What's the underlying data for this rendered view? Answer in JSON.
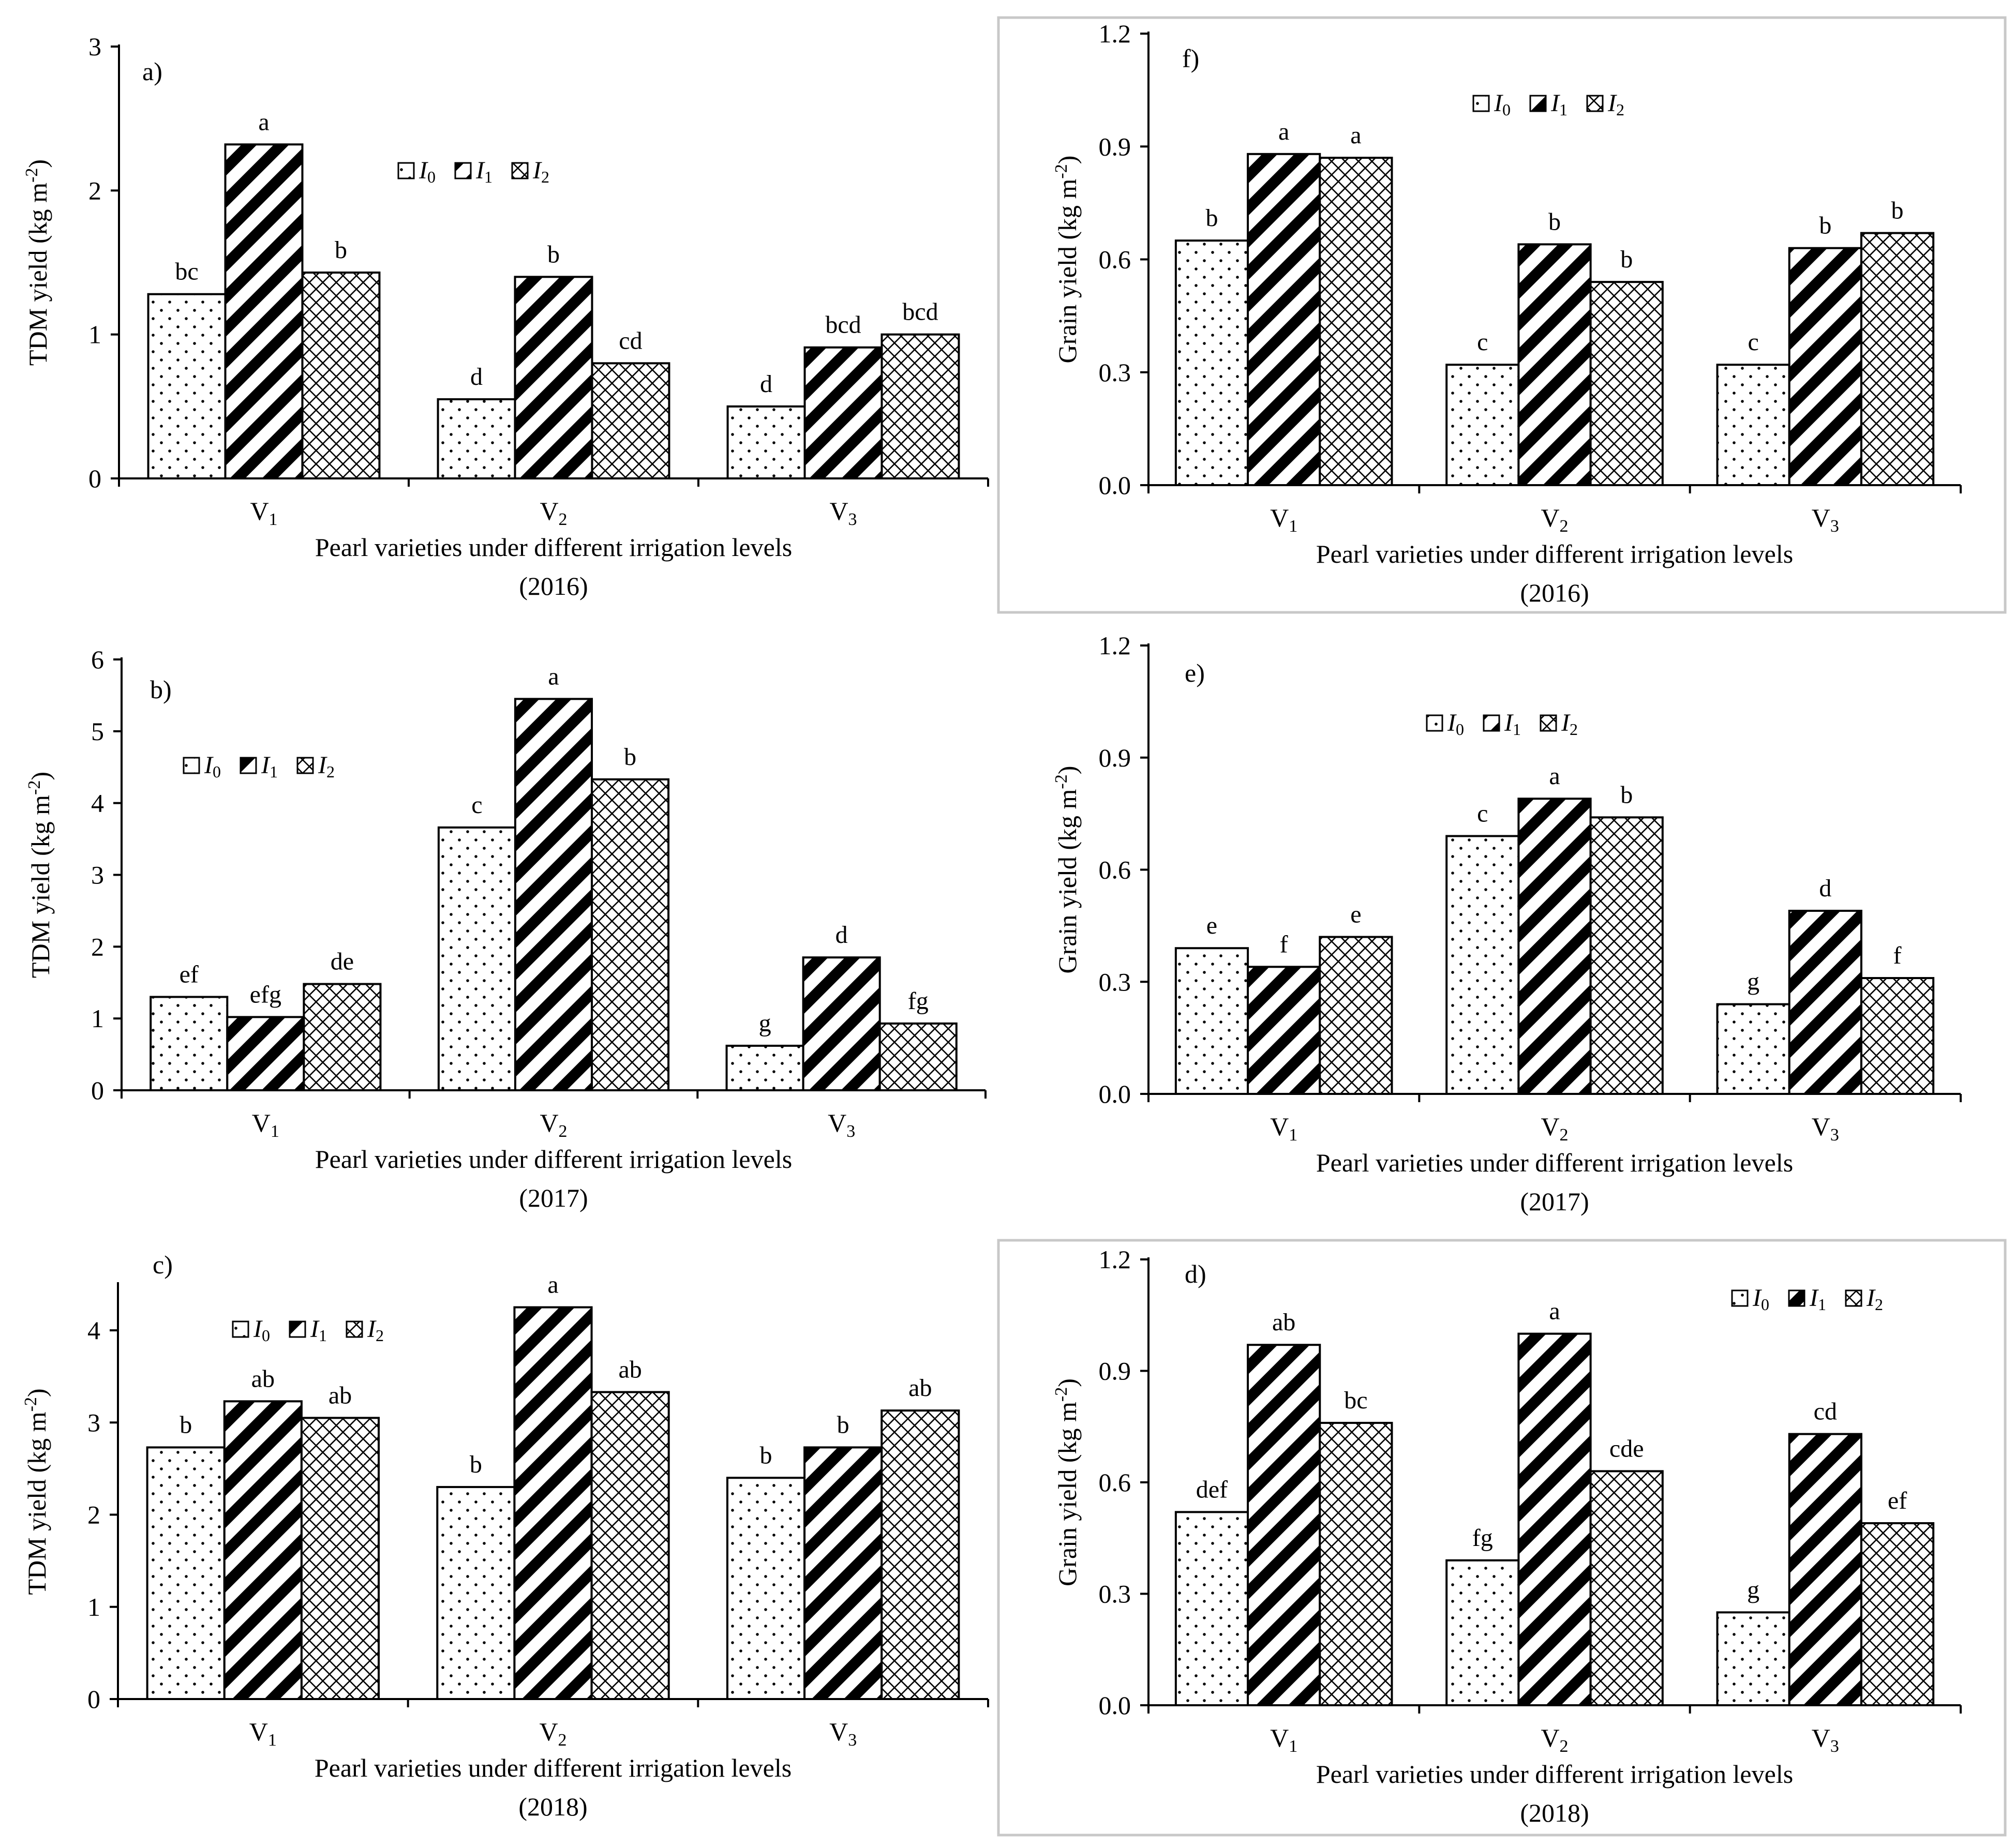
{
  "legend": {
    "i0": "I",
    "i1": "I",
    "i2": "I",
    "sub0": "0",
    "sub1": "1",
    "sub2": "2"
  },
  "colors": {
    "bar_stroke": "#000000",
    "axis": "#000000",
    "frame": "#c8c8c8",
    "background": "#ffffff"
  },
  "chart_data": [
    {
      "id": "a",
      "panel_label": "a)",
      "type": "bar",
      "ylabel": "TDM yield (kg m-2)",
      "ylabel_main": "TDM yield (kg m",
      "ylabel_sup": "-2",
      "ylabel_end": ")",
      "xlabel": "Pearl varieties under different irrigation levels",
      "year": "(2016)",
      "categories": [
        "V1",
        "V2",
        "V3"
      ],
      "category_base": "V",
      "category_subs": [
        "1",
        "2",
        "3"
      ],
      "ylim": [
        0,
        3
      ],
      "yticks": [
        "0",
        "1",
        "2",
        "3"
      ],
      "series": [
        {
          "name": "I0",
          "pattern": "dots",
          "values": [
            1.28,
            0.55,
            0.5
          ],
          "letters": [
            "bc",
            "d",
            "d"
          ]
        },
        {
          "name": "I1",
          "pattern": "stripes",
          "values": [
            2.32,
            1.4,
            0.91
          ],
          "letters": [
            "a",
            "b",
            "bcd"
          ]
        },
        {
          "name": "I2",
          "pattern": "cross",
          "values": [
            1.43,
            0.8,
            1.0
          ],
          "letters": [
            "b",
            "cd",
            "bcd"
          ]
        }
      ]
    },
    {
      "id": "b",
      "panel_label": "b)",
      "type": "bar",
      "ylabel": "TDM yield (kg m-2)",
      "ylabel_main": "TDM yield (kg m",
      "ylabel_sup": "-2",
      "ylabel_end": ")",
      "xlabel": "Pearl varieties under different irrigation levels",
      "year": "(2017)",
      "categories": [
        "V1",
        "V2",
        "V3"
      ],
      "category_base": "V",
      "category_subs": [
        "1",
        "2",
        "3"
      ],
      "ylim": [
        0,
        6
      ],
      "yticks": [
        "0",
        "1",
        "2",
        "3",
        "4",
        "5",
        "6"
      ],
      "series": [
        {
          "name": "I0",
          "pattern": "dots",
          "values": [
            1.3,
            3.66,
            0.62
          ],
          "letters": [
            "ef",
            "c",
            "g"
          ]
        },
        {
          "name": "I1",
          "pattern": "stripes",
          "values": [
            1.02,
            5.45,
            1.85
          ],
          "letters": [
            "efg",
            "a",
            "d"
          ]
        },
        {
          "name": "I2",
          "pattern": "cross",
          "values": [
            1.48,
            4.33,
            0.93
          ],
          "letters": [
            "de",
            "b",
            "fg"
          ]
        }
      ]
    },
    {
      "id": "c",
      "panel_label": "c)",
      "type": "bar",
      "ylabel": "TDM yield (kg m-2)",
      "ylabel_main": "TDM yield (kg m",
      "ylabel_sup": "-2",
      "ylabel_end": ")",
      "xlabel": "Pearl varieties under different irrigation levels",
      "year": "(2018)",
      "categories": [
        "V1",
        "V2",
        "V3"
      ],
      "category_base": "V",
      "category_subs": [
        "1",
        "2",
        "3"
      ],
      "ylim": [
        0,
        4.5
      ],
      "yticks": [
        "0",
        "1",
        "2",
        "3",
        "4"
      ],
      "series": [
        {
          "name": "I0",
          "pattern": "dots",
          "values": [
            2.73,
            2.3,
            2.4
          ],
          "letters": [
            "b",
            "b",
            "b"
          ]
        },
        {
          "name": "I1",
          "pattern": "stripes",
          "values": [
            3.23,
            4.25,
            2.73
          ],
          "letters": [
            "ab",
            "a",
            "b"
          ]
        },
        {
          "name": "I2",
          "pattern": "cross",
          "values": [
            3.05,
            3.33,
            3.13
          ],
          "letters": [
            "ab",
            "ab",
            "ab"
          ]
        }
      ]
    },
    {
      "id": "f",
      "panel_label": "f)",
      "type": "bar",
      "ylabel": "Grain yield (kg m-2)",
      "ylabel_main": "Grain yield (kg m",
      "ylabel_sup": "-2",
      "ylabel_end": ")",
      "xlabel": "Pearl varieties under different irrigation levels",
      "year": "(2016)",
      "categories": [
        "V1",
        "V2",
        "V3"
      ],
      "category_base": "V",
      "category_subs": [
        "1",
        "2",
        "3"
      ],
      "ylim": [
        0,
        1.2
      ],
      "yticks": [
        "0.0",
        "0.3",
        "0.6",
        "0.9",
        "1.2"
      ],
      "series": [
        {
          "name": "I0",
          "pattern": "dots",
          "values": [
            0.65,
            0.32,
            0.32
          ],
          "letters": [
            "b",
            "c",
            "c"
          ]
        },
        {
          "name": "I1",
          "pattern": "stripes",
          "values": [
            0.88,
            0.64,
            0.63
          ],
          "letters": [
            "a",
            "b",
            "b"
          ]
        },
        {
          "name": "I2",
          "pattern": "cross",
          "values": [
            0.87,
            0.54,
            0.67
          ],
          "letters": [
            "a",
            "b",
            "b"
          ]
        }
      ]
    },
    {
      "id": "e",
      "panel_label": "e)",
      "type": "bar",
      "ylabel": "Grain yield (kg m-2)",
      "ylabel_main": "Grain yield (kg m",
      "ylabel_sup": "-2",
      "ylabel_end": ")",
      "xlabel": "Pearl varieties under different irrigation levels",
      "year": "(2017)",
      "categories": [
        "V1",
        "V2",
        "V3"
      ],
      "category_base": "V",
      "category_subs": [
        "1",
        "2",
        "3"
      ],
      "ylim": [
        0,
        1.2
      ],
      "yticks": [
        "0.0",
        "0.3",
        "0.6",
        "0.9",
        "1.2"
      ],
      "series": [
        {
          "name": "I0",
          "pattern": "dots",
          "values": [
            0.39,
            0.69,
            0.24
          ],
          "letters": [
            "e",
            "c",
            "g"
          ]
        },
        {
          "name": "I1",
          "pattern": "stripes",
          "values": [
            0.34,
            0.79,
            0.49
          ],
          "letters": [
            "f",
            "a",
            "d"
          ]
        },
        {
          "name": "I2",
          "pattern": "cross",
          "values": [
            0.42,
            0.74,
            0.31
          ],
          "letters": [
            "e",
            "b",
            "f"
          ]
        }
      ]
    },
    {
      "id": "d",
      "panel_label": "d)",
      "type": "bar",
      "ylabel": "Grain yield (kg m-2)",
      "ylabel_main": "Grain yield (kg m",
      "ylabel_sup": "-2",
      "ylabel_end": ")",
      "xlabel": "Pearl varieties under different irrigation levels",
      "year": "(2018)",
      "categories": [
        "V1",
        "V2",
        "V3"
      ],
      "category_base": "V",
      "category_subs": [
        "1",
        "2",
        "3"
      ],
      "ylim": [
        0,
        1.2
      ],
      "yticks": [
        "0.0",
        "0.3",
        "0.6",
        "0.9",
        "1.2"
      ],
      "series": [
        {
          "name": "I0",
          "pattern": "dots",
          "values": [
            0.52,
            0.39,
            0.25
          ],
          "letters": [
            "def",
            "fg",
            "g"
          ]
        },
        {
          "name": "I1",
          "pattern": "stripes",
          "values": [
            0.97,
            1.0,
            0.73
          ],
          "letters": [
            "ab",
            "a",
            "cd"
          ]
        },
        {
          "name": "I2",
          "pattern": "cross",
          "values": [
            0.76,
            0.63,
            0.49
          ],
          "letters": [
            "bc",
            "cde",
            "ef"
          ]
        }
      ]
    }
  ]
}
